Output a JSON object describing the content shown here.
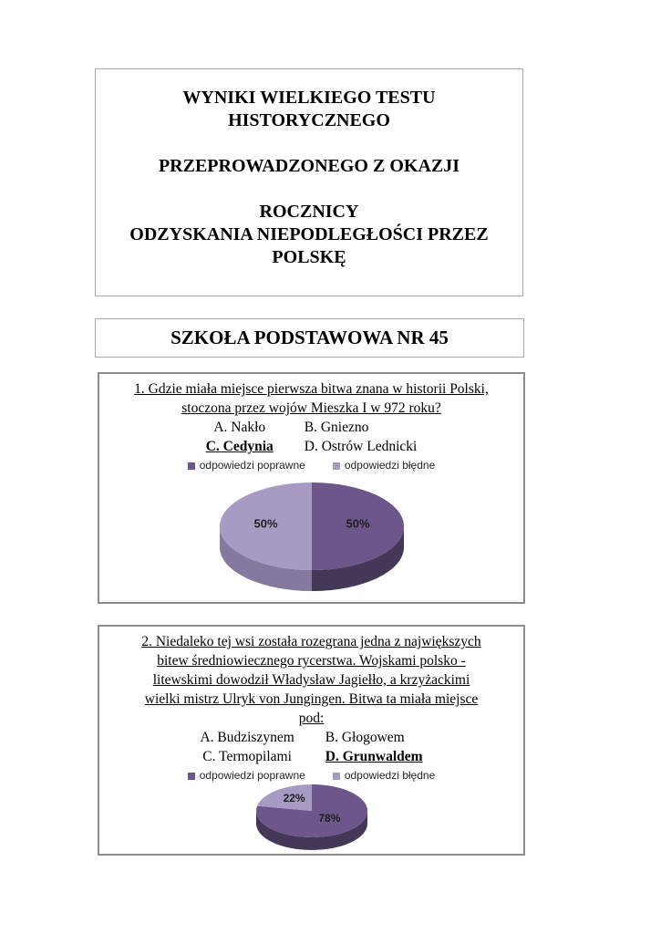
{
  "title_box": {
    "lines": [
      "WYNIKI WIELKIEGO TESTU",
      "HISTORYCZNEGO",
      "",
      "PRZEPROWADZONEGO Z OKAZJI",
      "",
      "ROCZNICY",
      "ODZYSKANIA NIEPODLEGŁOŚCI PRZEZ",
      "POLSKĘ"
    ]
  },
  "school_box": {
    "text": "SZKOŁA PODSTAWOWA NR 45"
  },
  "questions": [
    {
      "question_lines": [
        "1. Gdzie miała miejsce pierwsza bitwa znana w historii Polski,",
        "stoczona przez wojów Mieszka I w 972 roku?"
      ],
      "answers": [
        {
          "label": "A. Nakło",
          "correct": false
        },
        {
          "label": "B. Gniezno",
          "correct": false
        },
        {
          "label": "C. Cedynia",
          "correct": true
        },
        {
          "label": "D. Ostrów Lednicki",
          "correct": false
        }
      ]
    },
    {
      "question_lines": [
        "2. Niedaleko tej wsi została rozegrana jedna z największych",
        "bitew średniowiecznego rycerstwa. Wojskami polsko -",
        "litewskimi dowodził Władysław Jagiełło, a krzyżackimi",
        "wielki mistrz Ulryk von Jungingen. Bitwa ta miała miejsce",
        "pod:"
      ],
      "answers": [
        {
          "label": "A. Budziszynem",
          "correct": false
        },
        {
          "label": "B. Głogowem",
          "correct": false
        },
        {
          "label": "C. Termopilami",
          "correct": false
        },
        {
          "label": "D. Grunwaldem",
          "correct": true
        }
      ]
    }
  ],
  "chart_data": [
    {
      "type": "pie",
      "effect": "3d",
      "labels": [
        "odpowiedzi poprawne",
        "odpowiedzi błędne"
      ],
      "values": [
        50,
        50
      ],
      "value_labels": [
        "50%",
        "50%"
      ],
      "colors": [
        "#6d568b",
        "#a89bc3"
      ],
      "rim_colors": [
        "#453757",
        "#86799f"
      ],
      "label_color": "#1f1f1f",
      "legend_position": "top",
      "start_angle_deg": 0,
      "direction": "clockwise"
    },
    {
      "type": "pie",
      "effect": "3d",
      "labels": [
        "odpowiedzi poprawne",
        "odpowiedzi błędne"
      ],
      "values": [
        78,
        22
      ],
      "value_labels": [
        "78%",
        "22%"
      ],
      "colors": [
        "#6d568b",
        "#a89bc3"
      ],
      "rim_colors": [
        "#453757",
        "#86799f"
      ],
      "label_color": "#1f1f1f",
      "legend_position": "top",
      "start_angle_deg": 0,
      "direction": "clockwise"
    }
  ]
}
